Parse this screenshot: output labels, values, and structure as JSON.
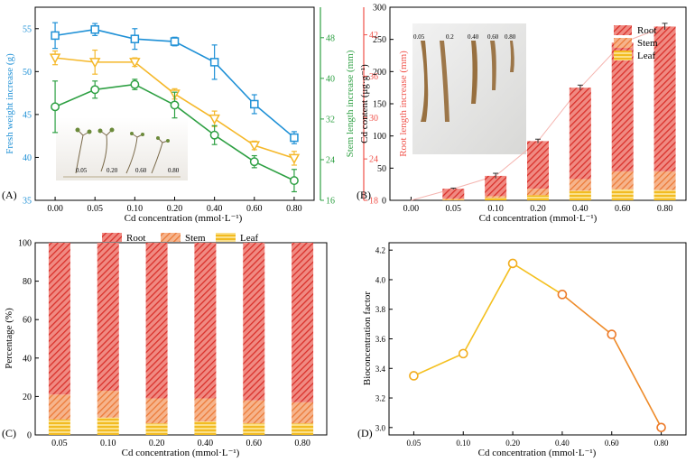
{
  "colors": {
    "blue": "#1e90d6",
    "yellow": "#f5b82a",
    "green": "#2ea043",
    "red": "#f0524a",
    "root": "#e8423c",
    "stem": "#f2884a",
    "leaf": "#f6c73c",
    "bcf": "#f2a52a"
  },
  "chart_data": [
    {
      "id": "A",
      "type": "line",
      "panel_label": "(A)",
      "xlabel": "Cd concentration (mmol·L⁻¹)",
      "categories": [
        "0.00",
        "0.05",
        "0.10",
        "0.20",
        "0.40",
        "0.60",
        "0.80"
      ],
      "photo_labels": [
        "0.05",
        "0.20",
        "0.60",
        "0.80"
      ],
      "axes": {
        "left": {
          "label": "Fresh weight increase (g)",
          "range": [
            35,
            57.5
          ],
          "ticks": [
            "35",
            "40",
            "45",
            "50",
            "55"
          ]
        },
        "green": {
          "label": "Stem length increase (mm)",
          "range": [
            16,
            54
          ],
          "ticks": [
            "16",
            "24",
            "32",
            "40",
            "48"
          ]
        },
        "red": {
          "label": "Root length increase (mm)",
          "range": [
            18,
            46
          ],
          "ticks": [
            "18",
            "24",
            "30",
            "36",
            "42"
          ]
        }
      },
      "series": [
        {
          "name": "Fresh weight",
          "axis": "left",
          "marker": "square",
          "values": [
            54.2,
            54.9,
            53.8,
            53.5,
            51.1,
            46.2,
            42.3
          ],
          "errors": [
            1.5,
            0.7,
            1.2,
            0.5,
            2.0,
            1.1,
            0.7
          ]
        },
        {
          "name": "Stem length",
          "axis": "left",
          "marker": "triangle",
          "values": [
            51.6,
            51.1,
            51.1,
            47.4,
            44.5,
            41.4,
            39.9
          ],
          "errors": [
            0.8,
            1.4,
            0.5,
            0.6,
            0.9,
            0.5,
            0.8
          ]
        },
        {
          "name": "Root length",
          "axis": "left",
          "marker": "circle",
          "values": [
            45.9,
            47.9,
            48.5,
            46.1,
            42.6,
            39.5,
            37.3
          ],
          "errors": [
            3.0,
            1.0,
            0.6,
            1.5,
            1.1,
            0.7,
            1.3
          ]
        }
      ]
    },
    {
      "id": "B",
      "type": "bar",
      "stacked": true,
      "panel_label": "(B)",
      "xlabel": "Cd concentration (mmol·L⁻¹)",
      "ylabel": "Cd content (μg·g⁻¹)",
      "ylim": [
        0,
        300
      ],
      "yticks": [
        "0",
        "50",
        "100",
        "150",
        "200",
        "250",
        "300"
      ],
      "categories": [
        "0.00",
        "0.05",
        "0.10",
        "0.20",
        "0.40",
        "0.60",
        "0.80"
      ],
      "series": [
        {
          "name": "Root",
          "values": [
            0,
            15,
            31,
            74,
            142,
            200,
            225
          ]
        },
        {
          "name": "Stem",
          "values": [
            0,
            2,
            3,
            10,
            18,
            28,
            29
          ]
        },
        {
          "name": "Leaf",
          "values": [
            0,
            1,
            4,
            8,
            15,
            17,
            16
          ]
        }
      ],
      "totals": [
        0,
        18,
        38,
        92,
        175,
        245,
        270
      ],
      "total_errors": [
        0,
        1,
        4,
        3,
        4,
        2,
        5
      ],
      "photo_labels": [
        "0.05",
        "0.2",
        "0.40",
        "0.60",
        "0.80"
      ]
    },
    {
      "id": "C",
      "type": "bar",
      "stacked": true,
      "panel_label": "(C)",
      "xlabel": "Cd concentration (mmol·L⁻¹)",
      "ylabel": "Percentage (%)",
      "ylim": [
        0,
        100
      ],
      "yticks": [
        "0",
        "20",
        "40",
        "60",
        "80",
        "100"
      ],
      "categories": [
        "0.05",
        "0.10",
        "0.20",
        "0.40",
        "0.60",
        "0.80"
      ],
      "series": [
        {
          "name": "Root",
          "values": [
            79,
            77,
            81,
            81,
            82,
            83
          ]
        },
        {
          "name": "Stem",
          "values": [
            13,
            14,
            13,
            12,
            12,
            11
          ]
        },
        {
          "name": "Leaf",
          "values": [
            8,
            9,
            6,
            7,
            6,
            6
          ]
        }
      ],
      "legend": [
        "Root",
        "Stem",
        "Leaf"
      ]
    },
    {
      "id": "D",
      "type": "line",
      "panel_label": "(D)",
      "xlabel": "Cd concentration (mmol·L⁻¹)",
      "ylabel": "Bioconcentration factor",
      "ylim": [
        2.95,
        4.25
      ],
      "yticks": [
        "3.0",
        "3.2",
        "3.4",
        "3.6",
        "3.8",
        "4.0",
        "4.2"
      ],
      "categories": [
        "0.05",
        "0.10",
        "0.20",
        "0.40",
        "0.60",
        "0.80"
      ],
      "values": [
        3.35,
        3.5,
        4.11,
        3.9,
        3.63,
        3.0
      ]
    }
  ]
}
